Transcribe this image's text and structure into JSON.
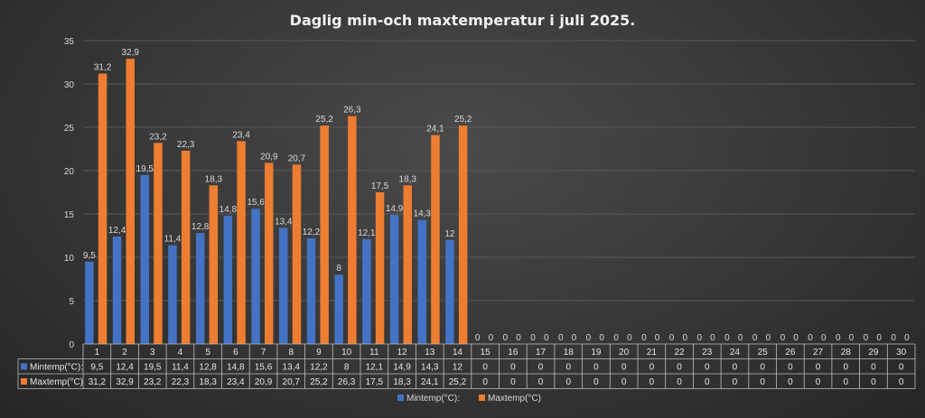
{
  "chart_data": {
    "type": "bar",
    "title": "Daglig min-och maxtemperatur i juli 2025.",
    "categories": [
      "1",
      "2",
      "3",
      "4",
      "5",
      "6",
      "7",
      "8",
      "9",
      "10",
      "11",
      "12",
      "13",
      "14",
      "15",
      "16",
      "17",
      "18",
      "19",
      "20",
      "21",
      "22",
      "23",
      "24",
      "25",
      "26",
      "27",
      "28",
      "29",
      "30"
    ],
    "series": [
      {
        "name": "Mintemp(°C):",
        "color": "#4472c4",
        "values": [
          9.5,
          12.4,
          19.5,
          11.4,
          12.8,
          14.8,
          15.6,
          13.4,
          12.2,
          8,
          12.1,
          14.9,
          14.3,
          12,
          0,
          0,
          0,
          0,
          0,
          0,
          0,
          0,
          0,
          0,
          0,
          0,
          0,
          0,
          0,
          0
        ],
        "labels": [
          "9,5",
          "12,4",
          "19,5",
          "11,4",
          "12,8",
          "14,8",
          "15,6",
          "13,4",
          "12,2",
          "8",
          "12,1",
          "14,9",
          "14,3",
          "12",
          "0",
          "0",
          "0",
          "0",
          "0",
          "0",
          "0",
          "0",
          "0",
          "0",
          "0",
          "0",
          "0",
          "0",
          "0",
          "0"
        ]
      },
      {
        "name": "Maxtemp(°C)",
        "color": "#ed7d31",
        "values": [
          31.2,
          32.9,
          23.2,
          22.3,
          18.3,
          23.4,
          20.9,
          20.7,
          25.2,
          26.3,
          17.5,
          18.3,
          24.1,
          25.2,
          0,
          0,
          0,
          0,
          0,
          0,
          0,
          0,
          0,
          0,
          0,
          0,
          0,
          0,
          0,
          0
        ],
        "labels": [
          "31,2",
          "32,9",
          "23,2",
          "22,3",
          "18,3",
          "23,4",
          "20,9",
          "20,7",
          "25,2",
          "26,3",
          "17,5",
          "18,3",
          "24,1",
          "25,2",
          "0",
          "0",
          "0",
          "0",
          "0",
          "0",
          "0",
          "0",
          "0",
          "0",
          "0",
          "0",
          "0",
          "0",
          "0",
          "0"
        ]
      }
    ],
    "ylim": [
      0,
      35
    ],
    "yticks": [
      "0",
      "5",
      "10",
      "15",
      "20",
      "25",
      "30",
      "35"
    ],
    "grid": true,
    "data_table": true,
    "legend": "bottom-center",
    "legend_entries": [
      "Mintemp(°C):",
      "Maxtemp(°C)"
    ]
  }
}
